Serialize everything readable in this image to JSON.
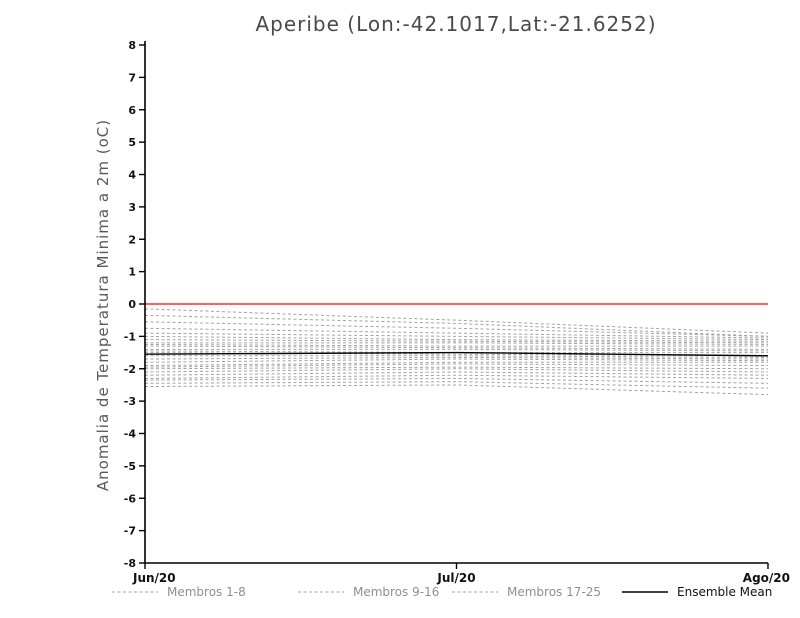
{
  "chart_data": {
    "type": "line",
    "title": "Aperibe (Lon:-42.1017,Lat:-21.6252)",
    "ylabel": "Anomalia de Temperatura Minima a 2m (oC)",
    "xlabel": "",
    "x_categories": [
      "Jun/20",
      "Jul/20",
      "Ago/20"
    ],
    "ylim": [
      -8,
      8
    ],
    "ytick_step": 1,
    "grid": false,
    "legend_position": "bottom",
    "colors": {
      "zero_line": "#ff2a2a",
      "member_line": "#a3a3a3",
      "mean_line": "#000000",
      "axis": "#000000"
    },
    "zero_line_y": 0,
    "legend": [
      {
        "label": "Membros 1-8",
        "style": "dashed",
        "color": "#a3a3a3"
      },
      {
        "label": "Membros 9-16",
        "style": "dashed",
        "color": "#a3a3a3"
      },
      {
        "label": "Membros 17-25",
        "style": "dashed",
        "color": "#a3a3a3"
      },
      {
        "label": "Ensemble Mean",
        "style": "solid",
        "color": "#000000"
      }
    ],
    "series": [
      {
        "name": "Membro 1",
        "group": "Membros 1-8",
        "style": "dashed",
        "values": [
          -0.15,
          -0.5,
          -0.9
        ]
      },
      {
        "name": "Membro 2",
        "group": "Membros 1-8",
        "style": "dashed",
        "values": [
          -0.35,
          -0.6,
          -1.0
        ]
      },
      {
        "name": "Membro 3",
        "group": "Membros 1-8",
        "style": "dashed",
        "values": [
          -0.55,
          -0.75,
          -1.0
        ]
      },
      {
        "name": "Membro 4",
        "group": "Membros 1-8",
        "style": "dashed",
        "values": [
          -0.75,
          -0.9,
          -1.05
        ]
      },
      {
        "name": "Membro 5",
        "group": "Membros 1-8",
        "style": "dashed",
        "values": [
          -0.9,
          -1.0,
          -1.1
        ]
      },
      {
        "name": "Membro 6",
        "group": "Membros 1-8",
        "style": "dashed",
        "values": [
          -1.0,
          -1.1,
          -1.15
        ]
      },
      {
        "name": "Membro 7",
        "group": "Membros 1-8",
        "style": "dashed",
        "values": [
          -1.1,
          -1.15,
          -1.2
        ]
      },
      {
        "name": "Membro 8",
        "group": "Membros 1-8",
        "style": "dashed",
        "values": [
          -1.2,
          -1.2,
          -1.25
        ]
      },
      {
        "name": "Membro 9",
        "group": "Membros 9-16",
        "style": "dashed",
        "values": [
          -1.25,
          -1.3,
          -1.3
        ]
      },
      {
        "name": "Membro 10",
        "group": "Membros 9-16",
        "style": "dashed",
        "values": [
          -1.3,
          -1.35,
          -1.4
        ]
      },
      {
        "name": "Membro 11",
        "group": "Membros 9-16",
        "style": "dashed",
        "values": [
          -1.4,
          -1.4,
          -1.45
        ]
      },
      {
        "name": "Membro 12",
        "group": "Membros 9-16",
        "style": "dashed",
        "values": [
          -1.45,
          -1.5,
          -1.5
        ]
      },
      {
        "name": "Membro 13",
        "group": "Membros 9-16",
        "style": "dashed",
        "values": [
          -1.5,
          -1.55,
          -1.6
        ]
      },
      {
        "name": "Membro 14",
        "group": "Membros 9-16",
        "style": "dashed",
        "values": [
          -1.6,
          -1.6,
          -1.65
        ]
      },
      {
        "name": "Membro 15",
        "group": "Membros 9-16",
        "style": "dashed",
        "values": [
          -1.7,
          -1.65,
          -1.7
        ]
      },
      {
        "name": "Membro 16",
        "group": "Membros 9-16",
        "style": "dashed",
        "values": [
          -1.8,
          -1.7,
          -1.75
        ]
      },
      {
        "name": "Membro 17",
        "group": "Membros 17-25",
        "style": "dashed",
        "values": [
          -1.9,
          -1.8,
          -1.8
        ]
      },
      {
        "name": "Membro 18",
        "group": "Membros 17-25",
        "style": "dashed",
        "values": [
          -1.95,
          -1.85,
          -1.9
        ]
      },
      {
        "name": "Membro 19",
        "group": "Membros 17-25",
        "style": "dashed",
        "values": [
          -2.0,
          -1.95,
          -2.0
        ]
      },
      {
        "name": "Membro 20",
        "group": "Membros 17-25",
        "style": "dashed",
        "values": [
          -2.1,
          -2.0,
          -2.1
        ]
      },
      {
        "name": "Membro 21",
        "group": "Membros 17-25",
        "style": "dashed",
        "values": [
          -2.2,
          -2.1,
          -2.2
        ]
      },
      {
        "name": "Membro 22",
        "group": "Membros 17-25",
        "style": "dashed",
        "values": [
          -2.3,
          -2.2,
          -2.3
        ]
      },
      {
        "name": "Membro 23",
        "group": "Membros 17-25",
        "style": "dashed",
        "values": [
          -2.35,
          -2.3,
          -2.45
        ]
      },
      {
        "name": "Membro 24",
        "group": "Membros 17-25",
        "style": "dashed",
        "values": [
          -2.45,
          -2.4,
          -2.6
        ]
      },
      {
        "name": "Membro 25",
        "group": "Membros 17-25",
        "style": "dashed",
        "values": [
          -2.55,
          -2.5,
          -2.8
        ]
      }
    ],
    "ensemble_mean": {
      "name": "Ensemble Mean",
      "style": "solid",
      "values": [
        -1.55,
        -1.5,
        -1.6
      ]
    }
  }
}
